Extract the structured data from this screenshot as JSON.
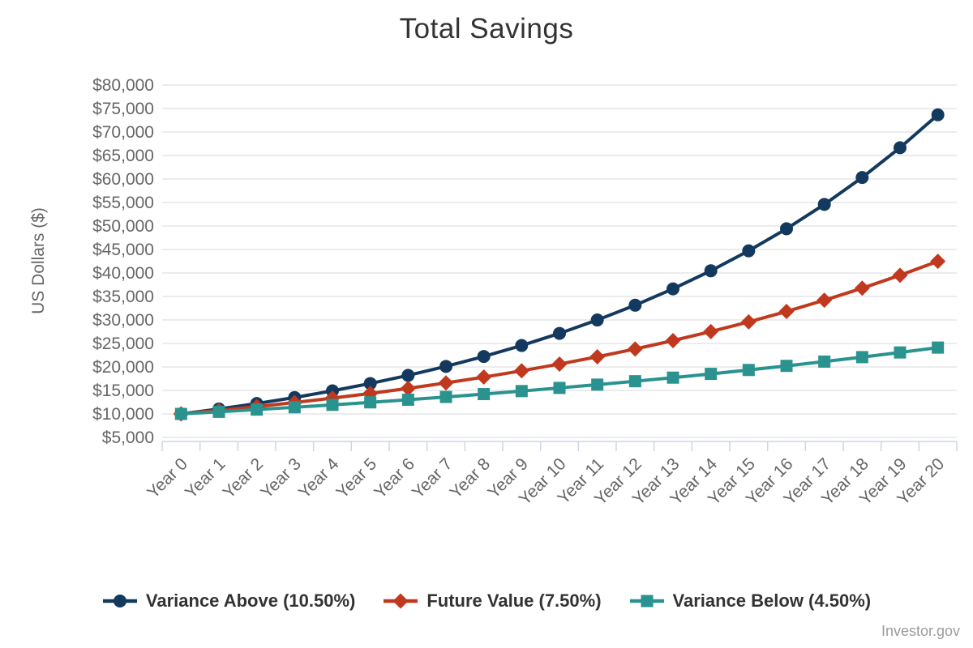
{
  "colors": {
    "title": "#333333",
    "axis_labels": "#666666",
    "axis_line": "#ccd6eb",
    "gridline": "#e6e6e6",
    "legend_text": "#333333",
    "source_text": "#9b9b9b",
    "background": "#ffffff"
  },
  "source_label": "Investor.gov",
  "chart_data": {
    "type": "line",
    "title": "Total Savings",
    "xlabel": "",
    "ylabel": "US Dollars ($)",
    "ylim": [
      5000,
      80000
    ],
    "ytick_step": 5000,
    "ytick_format": "$#,##0",
    "grid": true,
    "legend_position": "bottom",
    "source_label": "Investor.gov",
    "categories": [
      "Year 0",
      "Year 1",
      "Year 2",
      "Year 3",
      "Year 4",
      "Year 5",
      "Year 6",
      "Year 7",
      "Year 8",
      "Year 9",
      "Year 10",
      "Year 11",
      "Year 12",
      "Year 13",
      "Year 14",
      "Year 15",
      "Year 16",
      "Year 17",
      "Year 18",
      "Year 19",
      "Year 20"
    ],
    "series": [
      {
        "id": "variance-above",
        "name": "Variance Above (10.50%)",
        "rate_percent": 10.5,
        "color": "#14395e",
        "marker": "circle",
        "values": [
          10000,
          11050,
          12210,
          13492,
          14909,
          16474,
          18204,
          20116,
          22228,
          24562,
          27141,
          29991,
          33140,
          36619,
          40464,
          44713,
          49408,
          54596,
          60328,
          66663,
          73662
        ]
      },
      {
        "id": "future-value",
        "name": "Future Value (7.50%)",
        "rate_percent": 7.5,
        "color": "#c0391f",
        "marker": "diamond",
        "values": [
          10000,
          10750,
          11556,
          12424,
          13355,
          14356,
          15433,
          16590,
          17835,
          19172,
          20610,
          22156,
          23818,
          25604,
          27524,
          29589,
          31808,
          34194,
          36758,
          39515,
          42479
        ]
      },
      {
        "id": "variance-below",
        "name": "Variance Below (4.50%)",
        "rate_percent": 4.5,
        "color": "#2a938f",
        "marker": "square",
        "values": [
          10000,
          10450,
          10920,
          11412,
          11925,
          12462,
          13023,
          13609,
          14221,
          14861,
          15530,
          16229,
          16959,
          17722,
          18519,
          19353,
          20224,
          21134,
          22085,
          23079,
          24117
        ]
      }
    ]
  }
}
